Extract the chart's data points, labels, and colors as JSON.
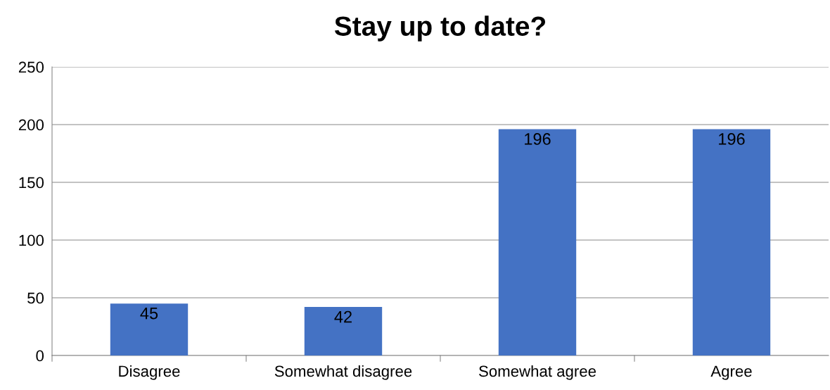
{
  "chart_data": {
    "type": "bar",
    "title": "Stay up to date?",
    "categories": [
      "Disagree",
      "Somewhat disagree",
      "Somewhat agree",
      "Agree"
    ],
    "values": [
      45,
      42,
      196,
      196
    ],
    "color": "#4472c4",
    "ylim": [
      0,
      250
    ],
    "yticks": [
      0,
      50,
      100,
      150,
      200,
      250
    ],
    "grid": "y",
    "data_labels": true
  }
}
